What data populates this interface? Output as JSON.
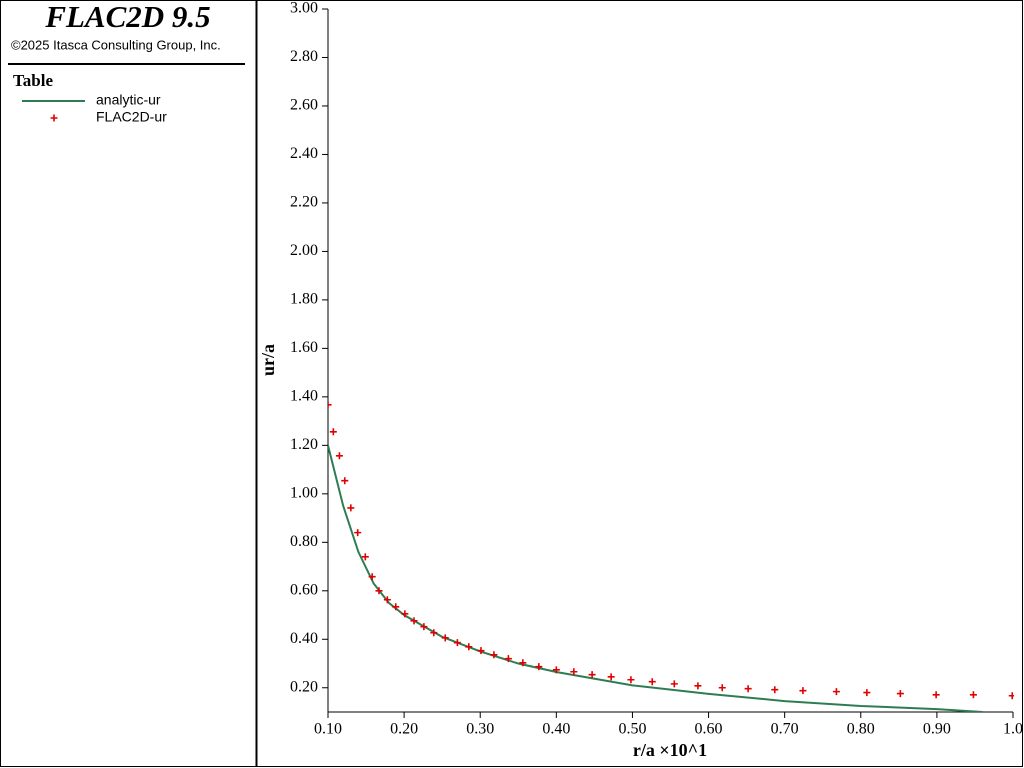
{
  "chart_data": {
    "type": "line",
    "title": "FLAC2D 9.5",
    "subtitle": "©2025 Itasca Consulting Group, Inc.",
    "legend_title": "Table",
    "x_label": "r/a ×10^1",
    "y_label": "ur/a",
    "xlim": [
      0.1,
      1.0
    ],
    "ylim": [
      0.1,
      3.0
    ],
    "xticks": [
      {
        "value": 0.1,
        "label": "0.10"
      },
      {
        "value": 0.2,
        "label": "0.20"
      },
      {
        "value": 0.3,
        "label": "0.30"
      },
      {
        "value": 0.4,
        "label": "0.40"
      },
      {
        "value": 0.5,
        "label": "0.50"
      },
      {
        "value": 0.6,
        "label": "0.60"
      },
      {
        "value": 0.7,
        "label": "0.70"
      },
      {
        "value": 0.8,
        "label": "0.80"
      },
      {
        "value": 0.9,
        "label": "0.90"
      },
      {
        "value": 1.0,
        "label": "1.0"
      }
    ],
    "yticks": [
      {
        "value": 0.2,
        "label": "0.20"
      },
      {
        "value": 0.4,
        "label": "0.40"
      },
      {
        "value": 0.6,
        "label": "0.60"
      },
      {
        "value": 0.8,
        "label": "0.80"
      },
      {
        "value": 1.0,
        "label": "1.00"
      },
      {
        "value": 1.2,
        "label": "1.20"
      },
      {
        "value": 1.4,
        "label": "1.40"
      },
      {
        "value": 1.6,
        "label": "1.60"
      },
      {
        "value": 1.8,
        "label": "1.80"
      },
      {
        "value": 2.0,
        "label": "2.00"
      },
      {
        "value": 2.2,
        "label": "2.20"
      },
      {
        "value": 2.4,
        "label": "2.40"
      },
      {
        "value": 2.6,
        "label": "2.60"
      },
      {
        "value": 2.8,
        "label": "2.80"
      },
      {
        "value": 3.0,
        "label": "3.00"
      }
    ],
    "series": [
      {
        "name": "analytic-ur",
        "color": "#2e7d52",
        "style": "line",
        "x": [
          0.1,
          0.12,
          0.14,
          0.16,
          0.18,
          0.2,
          0.25,
          0.3,
          0.35,
          0.4,
          0.5,
          0.6,
          0.7,
          0.8,
          0.9,
          0.96
        ],
        "values": [
          1.2,
          0.95,
          0.76,
          0.63,
          0.55,
          0.5,
          0.41,
          0.35,
          0.3,
          0.265,
          0.21,
          0.175,
          0.145,
          0.125,
          0.112,
          0.1
        ]
      },
      {
        "name": "FLAC2D-ur",
        "color": "#e00000",
        "style": "marker",
        "x": [
          0.1,
          0.107,
          0.115,
          0.122,
          0.13,
          0.139,
          0.149,
          0.158,
          0.167,
          0.178,
          0.189,
          0.201,
          0.213,
          0.226,
          0.239,
          0.254,
          0.27,
          0.285,
          0.301,
          0.318,
          0.337,
          0.356,
          0.377,
          0.4,
          0.423,
          0.447,
          0.472,
          0.498,
          0.526,
          0.555,
          0.586,
          0.618,
          0.652,
          0.687,
          0.724,
          0.768,
          0.808,
          0.852,
          0.899,
          0.948,
          0.999
        ],
        "values": [
          1.367,
          1.256,
          1.157,
          1.054,
          0.942,
          0.84,
          0.74,
          0.658,
          0.6,
          0.563,
          0.534,
          0.505,
          0.476,
          0.452,
          0.427,
          0.406,
          0.386,
          0.369,
          0.353,
          0.336,
          0.32,
          0.303,
          0.287,
          0.274,
          0.266,
          0.254,
          0.245,
          0.233,
          0.225,
          0.216,
          0.208,
          0.2,
          0.196,
          0.192,
          0.188,
          0.184,
          0.18,
          0.176,
          0.171,
          0.171,
          0.167
        ]
      }
    ]
  }
}
